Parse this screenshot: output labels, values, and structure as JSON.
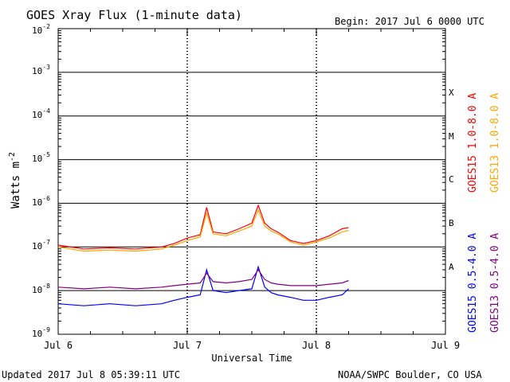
{
  "header": {
    "title": "GOES Xray Flux (1-minute data)",
    "begin": "Begin:  2017 Jul 6 0000 UTC"
  },
  "footer": {
    "updated": "Updated 2017 Jul  8 05:39:11 UTC",
    "credit": "NOAA/SWPC Boulder, CO USA"
  },
  "chart_data": {
    "type": "line",
    "title": "GOES Xray Flux (1-minute data)",
    "xlabel": "Universal Time",
    "ylabel": "Watts m",
    "ylabel_sup": "-2",
    "yscale": "log",
    "ylim": [
      1e-09,
      0.01
    ],
    "xlim_days": [
      0,
      3
    ],
    "x_tick_labels": [
      "Jul 6",
      "Jul 7",
      "Jul 8",
      "Jul 9"
    ],
    "y_tick_labels": [
      {
        "base": "10",
        "exp": "-9"
      },
      {
        "base": "10",
        "exp": "-8"
      },
      {
        "base": "10",
        "exp": "-7"
      },
      {
        "base": "10",
        "exp": "-6"
      },
      {
        "base": "10",
        "exp": "-5"
      },
      {
        "base": "10",
        "exp": "-4"
      },
      {
        "base": "10",
        "exp": "-3"
      },
      {
        "base": "10",
        "exp": "-2"
      }
    ],
    "flare_classes": [
      "X",
      "M",
      "C",
      "B",
      "A"
    ],
    "grid": "horizontal lines at each decade",
    "legend_placement": "right, rotated",
    "series": [
      {
        "name": "GOES15 1.0-8.0 A",
        "color": "#ff0000",
        "x": [
          0,
          0.2,
          0.4,
          0.6,
          0.8,
          0.9,
          1.0,
          1.1,
          1.15,
          1.2,
          1.3,
          1.4,
          1.5,
          1.55,
          1.6,
          1.65,
          1.7,
          1.8,
          1.9,
          2.0,
          2.1,
          2.2,
          2.25
        ],
        "y": [
          1.1e-07,
          9e-08,
          9.5e-08,
          9e-08,
          1e-07,
          1.2e-07,
          1.6e-07,
          1.9e-07,
          8e-07,
          2.2e-07,
          2e-07,
          2.6e-07,
          3.5e-07,
          9e-07,
          3.5e-07,
          2.6e-07,
          2.2e-07,
          1.4e-07,
          1.2e-07,
          1.4e-07,
          1.8e-07,
          2.6e-07,
          2.8e-07
        ]
      },
      {
        "name": "GOES13 1.0-8.0 A",
        "color": "#ffa500",
        "x": [
          0,
          0.2,
          0.4,
          0.6,
          0.8,
          0.9,
          1.0,
          1.1,
          1.15,
          1.2,
          1.3,
          1.4,
          1.5,
          1.55,
          1.6,
          1.65,
          1.7,
          1.8,
          1.9,
          2.0,
          2.1,
          2.2,
          2.25
        ],
        "y": [
          1e-07,
          8e-08,
          8.5e-08,
          8e-08,
          9e-08,
          1.1e-07,
          1.4e-07,
          1.7e-07,
          6e-07,
          2e-07,
          1.8e-07,
          2.3e-07,
          3e-07,
          7e-07,
          3e-07,
          2.3e-07,
          2e-07,
          1.3e-07,
          1.1e-07,
          1.3e-07,
          1.6e-07,
          2.2e-07,
          2.4e-07
        ]
      },
      {
        "name": "GOES15 0.5-4.0 A",
        "color": "#0000ff",
        "x": [
          0,
          0.2,
          0.4,
          0.6,
          0.8,
          0.9,
          1.0,
          1.1,
          1.15,
          1.2,
          1.3,
          1.4,
          1.5,
          1.55,
          1.6,
          1.65,
          1.7,
          1.8,
          1.9,
          2.0,
          2.1,
          2.2,
          2.25
        ],
        "y": [
          5e-09,
          4.5e-09,
          5e-09,
          4.5e-09,
          5e-09,
          6e-09,
          7e-09,
          8e-09,
          3e-08,
          1e-08,
          9e-09,
          1e-08,
          1.1e-08,
          3.5e-08,
          1.2e-08,
          9e-09,
          8e-09,
          7e-09,
          6e-09,
          6e-09,
          7e-09,
          8e-09,
          1.1e-08
        ]
      },
      {
        "name": "GOES13 0.5-4.0 A",
        "color": "#800080",
        "x": [
          0,
          0.2,
          0.4,
          0.6,
          0.8,
          0.9,
          1.0,
          1.1,
          1.15,
          1.2,
          1.3,
          1.4,
          1.5,
          1.55,
          1.6,
          1.65,
          1.7,
          1.8,
          1.9,
          2.0,
          2.1,
          2.2,
          2.25
        ],
        "y": [
          1.2e-08,
          1.1e-08,
          1.2e-08,
          1.1e-08,
          1.2e-08,
          1.3e-08,
          1.4e-08,
          1.5e-08,
          2.5e-08,
          1.6e-08,
          1.5e-08,
          1.6e-08,
          1.8e-08,
          3e-08,
          1.8e-08,
          1.5e-08,
          1.4e-08,
          1.3e-08,
          1.3e-08,
          1.3e-08,
          1.4e-08,
          1.5e-08,
          1.7e-08
        ]
      }
    ]
  }
}
